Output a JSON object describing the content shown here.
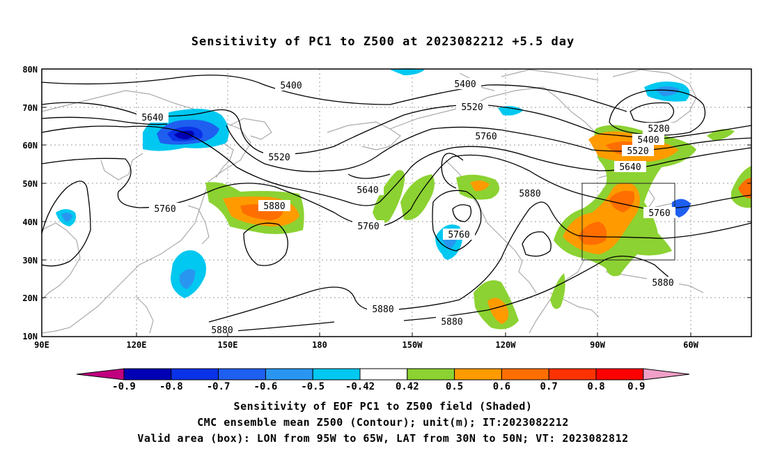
{
  "title": "Sensitivity of PC1 to Z500 at 2023082212 +5.5 day",
  "lat_ticks": [
    "80N",
    "70N",
    "60N",
    "50N",
    "40N",
    "30N",
    "20N",
    "10N"
  ],
  "lon_ticks": [
    "90E",
    "120E",
    "150E",
    "180",
    "150W",
    "120W",
    "90W",
    "60W"
  ],
  "contour_labels": [
    {
      "text": "5400",
      "key": "c1"
    },
    {
      "text": "5400",
      "key": "c2"
    },
    {
      "text": "5520",
      "key": "c3"
    },
    {
      "text": "5640",
      "key": "c4"
    },
    {
      "text": "5520",
      "key": "c5"
    },
    {
      "text": "5760",
      "key": "c6"
    },
    {
      "text": "5880",
      "key": "c7"
    },
    {
      "text": "5640",
      "key": "c8"
    },
    {
      "text": "5760",
      "key": "c9"
    },
    {
      "text": "5760",
      "key": "c10"
    },
    {
      "text": "5760",
      "key": "c11"
    },
    {
      "text": "5880",
      "key": "c12"
    },
    {
      "text": "5280",
      "key": "c13"
    },
    {
      "text": "5400",
      "key": "c14"
    },
    {
      "text": "5520",
      "key": "c15"
    },
    {
      "text": "5640",
      "key": "c16"
    },
    {
      "text": "5760",
      "key": "c17"
    },
    {
      "text": "5880",
      "key": "c18"
    },
    {
      "text": "5880",
      "key": "c19"
    },
    {
      "text": "5880",
      "key": "c20"
    },
    {
      "text": "5880",
      "key": "c21"
    }
  ],
  "colorbar": {
    "labels": [
      "-0.9",
      "-0.8",
      "-0.7",
      "-0.6",
      "-0.5",
      "-0.42",
      "0.42",
      "0.5",
      "0.6",
      "0.7",
      "0.8",
      "0.9"
    ],
    "colors": [
      "#c0007f",
      "#0000b4",
      "#0a32e6",
      "#1e5ff0",
      "#2896f0",
      "#00c8f0",
      "#ffffff",
      "#8cd232",
      "#ff9b00",
      "#ff6e00",
      "#ff3200",
      "#ff0000",
      "#f0a0c8"
    ]
  },
  "valid_box": {
    "lon_min": -95,
    "lon_max": -65,
    "lat_min": 30,
    "lat_max": 50
  },
  "footer": {
    "line1": "Sensitivity of EOF PC1 to Z500 field (Shaded)",
    "line2": "CMC ensemble mean Z500 (Contour); unit(m); IT:2023082212",
    "line3": "Valid area (box): LON from 95W to 65W, LAT from 30N to 50N; VT: 2023082812"
  }
}
